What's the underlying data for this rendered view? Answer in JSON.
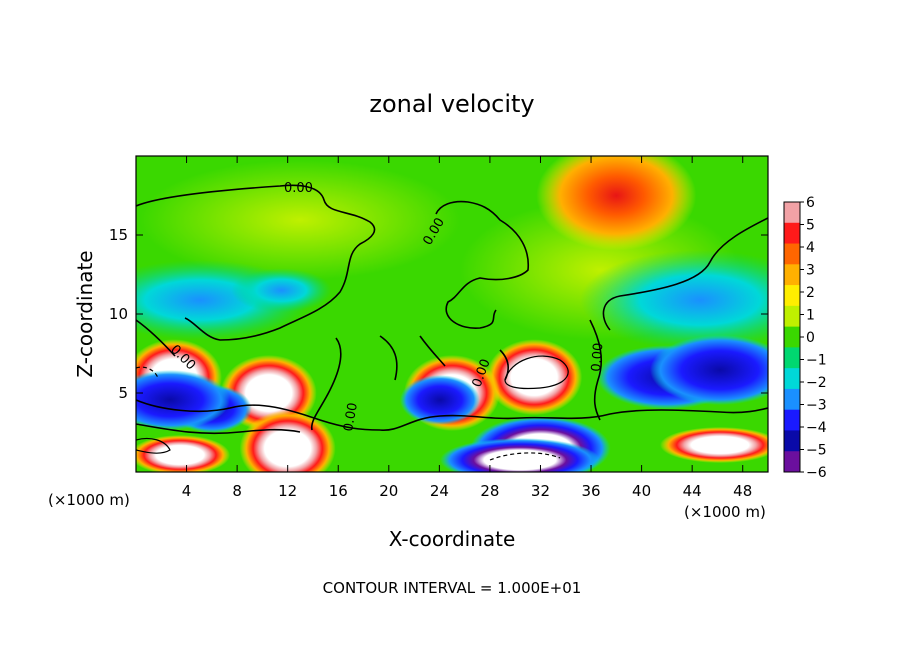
{
  "chart_data": {
    "type": "heatmap",
    "title": "zonal velocity",
    "xlabel": "X-coordinate",
    "ylabel": "Z-coordinate",
    "x_unit_label": "(×1000 m)",
    "x_unit_label_right": "(×1000 m)",
    "xlim": [
      0,
      50
    ],
    "ylim": [
      0,
      20
    ],
    "xticks": [
      4,
      8,
      12,
      16,
      20,
      24,
      28,
      32,
      36,
      40,
      44,
      48
    ],
    "yticks": [
      5,
      10,
      15
    ],
    "colorbar": {
      "ticks": [
        6,
        5,
        4,
        3,
        2,
        1,
        0,
        -1,
        -2,
        -3,
        -4,
        -5,
        -6
      ],
      "colors": [
        "#f2a2a6",
        "#ff1a1a",
        "#ff6600",
        "#ffb000",
        "#ffee00",
        "#bff000",
        "#3ad800",
        "#00d870",
        "#00d8d8",
        "#1a90ff",
        "#1a1aff",
        "#0a0aa8",
        "#6b0f9e"
      ]
    },
    "contour_label": "0.00",
    "contour_interval_text": "CONTOUR INTERVAL = 1.000E+01",
    "features": [
      {
        "x": 38,
        "z": 17.5,
        "value": 4.5
      },
      {
        "x": 11.5,
        "z": 11.5,
        "value": -2
      },
      {
        "x": 10.5,
        "z": 5,
        "value": 7
      },
      {
        "x": 31.5,
        "z": 6,
        "value": 7
      },
      {
        "x": 3,
        "z": 6,
        "value": 7
      },
      {
        "x": 25,
        "z": 5,
        "value": 7
      },
      {
        "x": 42,
        "z": 6,
        "value": -5
      },
      {
        "x": 6,
        "z": 4,
        "value": -4
      },
      {
        "x": 32,
        "z": 1.5,
        "value": -6
      },
      {
        "x": 12,
        "z": 1.5,
        "value": 6
      }
    ]
  }
}
